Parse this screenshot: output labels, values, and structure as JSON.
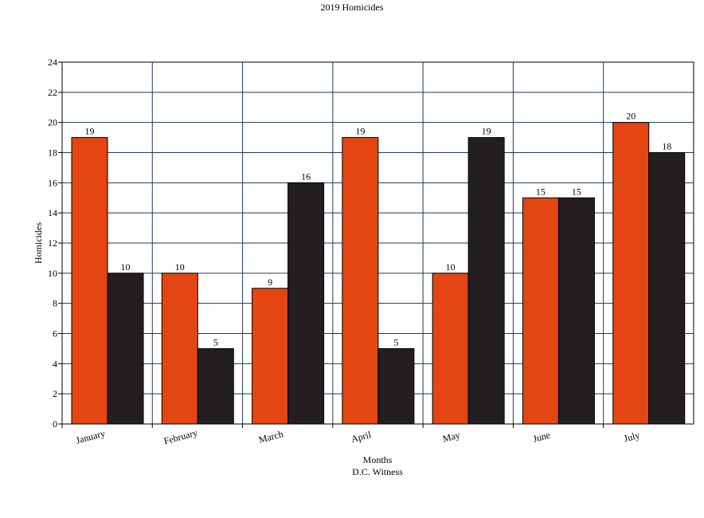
{
  "chart_data": {
    "type": "bar",
    "title": "2019 Homicides",
    "xlabel": "Months",
    "source": "D.C. Witness",
    "ylabel": "Homicides",
    "categories": [
      "January",
      "February",
      "March",
      "April",
      "May",
      "June",
      "July"
    ],
    "series": [
      {
        "values": [
          19,
          10,
          9,
          19,
          10,
          15,
          20
        ],
        "color": "#e34612"
      },
      {
        "values": [
          10,
          5,
          16,
          5,
          19,
          15,
          18
        ],
        "color": "#231f20"
      }
    ],
    "ylim": [
      0,
      24
    ],
    "yticks": [
      "0",
      "2",
      "4",
      "6",
      "8",
      "10",
      "12",
      "14",
      "16",
      "18",
      "20",
      "22",
      "24"
    ],
    "grid": true,
    "grid_color": "#1f3a5a",
    "legend": "none"
  }
}
